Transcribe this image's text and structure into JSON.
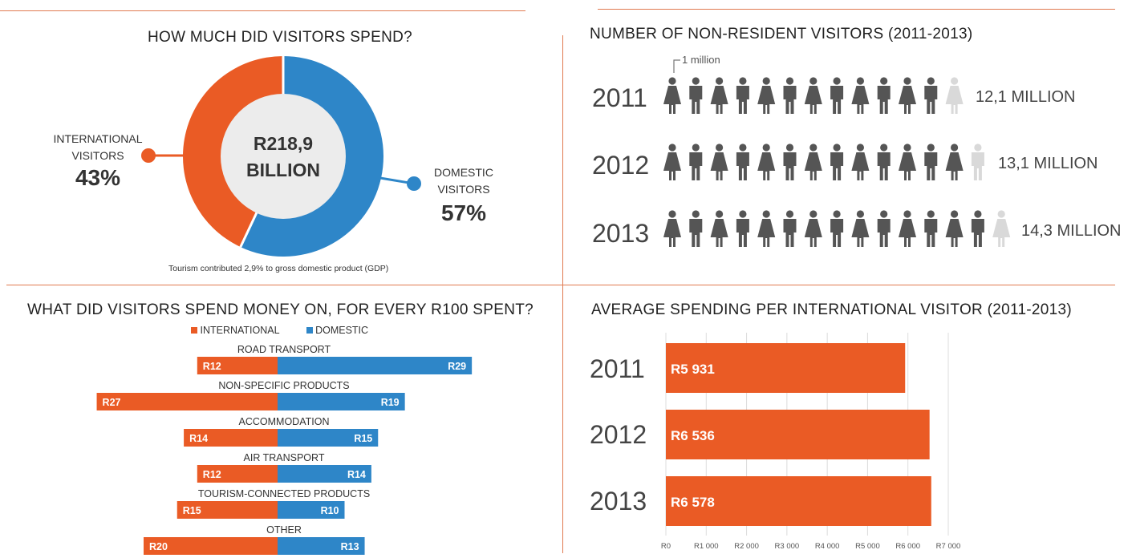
{
  "colors": {
    "international": "#ea5b25",
    "domestic": "#2e86c8",
    "figure": "#555555",
    "figure_faded": "#d9d9d9"
  },
  "panel_spend": {
    "title": "HOW MUCH DID VISITORS SPEND?",
    "center_line1": "R218,9",
    "center_line2": "BILLION",
    "intl_label_1": "INTERNATIONAL",
    "intl_label_2": "VISITORS",
    "intl_pct": "43%",
    "dom_label_1": "DOMESTIC",
    "dom_label_2": "VISITORS",
    "dom_pct": "57%",
    "footnote": "Tourism contributed 2,9% to gross domestic product (GDP)"
  },
  "panel_visitors": {
    "title": "NUMBER OF NON-RESIDENT VISITORS (2011-2013)",
    "unit_note": "1 million",
    "rows": [
      {
        "year": "2011",
        "value": 12.1,
        "label": "12,1 MILLION"
      },
      {
        "year": "2012",
        "value": 13.1,
        "label": "13,1 MILLION"
      },
      {
        "year": "2013",
        "value": 14.3,
        "label": "14,3 MILLION"
      }
    ]
  },
  "panel_categories": {
    "title": "WHAT DID VISITORS SPEND MONEY ON, FOR EVERY R100 SPENT?",
    "legend_international": "INTERNATIONAL",
    "legend_domestic": "DOMESTIC"
  },
  "panel_average": {
    "title": "AVERAGE SPENDING PER INTERNATIONAL VISITOR (2011-2013)"
  },
  "chart_data": [
    {
      "type": "pie",
      "title": "HOW MUCH DID VISITORS SPEND?",
      "categories": [
        "INTERNATIONAL VISITORS",
        "DOMESTIC VISITORS"
      ],
      "values": [
        43,
        57
      ],
      "total": "R218,9 BILLION"
    },
    {
      "type": "bar",
      "title": "NUMBER OF NON-RESIDENT VISITORS (2011-2013)",
      "categories": [
        "2011",
        "2012",
        "2013"
      ],
      "values": [
        12.1,
        13.1,
        14.3
      ],
      "unit": "MILLION"
    },
    {
      "type": "bar",
      "title": "WHAT DID VISITORS SPEND MONEY ON, FOR EVERY R100 SPENT?",
      "categories": [
        "ROAD TRANSPORT",
        "NON-SPECIFIC PRODUCTS",
        "ACCOMMODATION",
        "AIR TRANSPORT",
        "TOURISM-CONNECTED PRODUCTS",
        "OTHER"
      ],
      "series": [
        {
          "name": "INTERNATIONAL",
          "values": [
            12,
            27,
            14,
            12,
            15,
            20
          ],
          "labels": [
            "R12",
            "R27",
            "R14",
            "R12",
            "R15",
            "R20"
          ]
        },
        {
          "name": "DOMESTIC",
          "values": [
            29,
            19,
            15,
            14,
            10,
            13
          ],
          "labels": [
            "R29",
            "R19",
            "R15",
            "R14",
            "R10",
            "R13"
          ]
        }
      ],
      "legend": "top"
    },
    {
      "type": "bar",
      "title": "AVERAGE SPENDING PER INTERNATIONAL VISITOR (2011-2013)",
      "categories": [
        "2011",
        "2012",
        "2013"
      ],
      "values": [
        5931,
        6536,
        6578
      ],
      "labels": [
        "R5 931",
        "R6 536",
        "R6 578"
      ],
      "xlim": [
        0,
        7000
      ],
      "ticks": [
        "R0",
        "R1 000",
        "R2 000",
        "R3 000",
        "R4 000",
        "R5 000",
        "R6 000",
        "R7 000"
      ],
      "grid": true
    }
  ]
}
